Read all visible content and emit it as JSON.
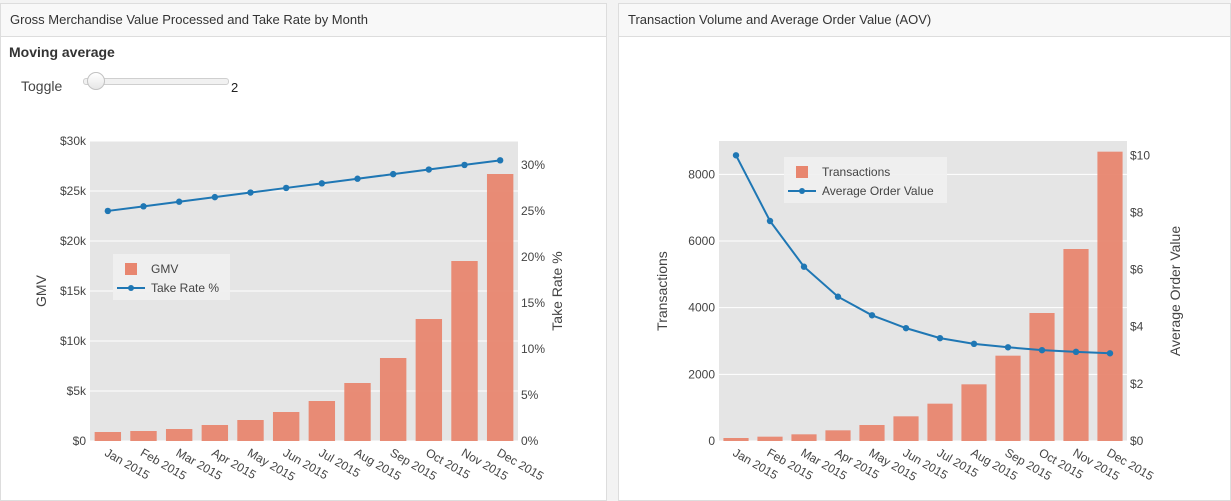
{
  "left_panel": {
    "title": "Gross Merchandise Value Processed and Take Rate by Month",
    "moving_average": {
      "heading": "Moving average",
      "toggle_label": "Toggle",
      "value": "2",
      "slider_fraction": 0.03
    }
  },
  "right_panel": {
    "title": "Transaction Volume and Average Order Value (AOV)"
  },
  "colors": {
    "bar": "#e8866f",
    "line": "#1f77b4",
    "plot_bg": "#e5e5e5",
    "grid": "#ffffff"
  },
  "chart_data": [
    {
      "type": "bar",
      "categories": [
        "Jan 2015",
        "Feb 2015",
        "Mar 2015",
        "Apr 2015",
        "May 2015",
        "Jun 2015",
        "Jul 2015",
        "Aug 2015",
        "Sep 2015",
        "Oct 2015",
        "Nov 2015",
        "Dec 2015"
      ],
      "series": [
        {
          "name": "GMV",
          "type": "bar",
          "axis": "left",
          "values": [
            900,
            1000,
            1200,
            1600,
            2100,
            2900,
            4000,
            5800,
            8300,
            12200,
            18000,
            26700
          ]
        },
        {
          "name": "Take Rate %",
          "type": "line",
          "axis": "right",
          "values": [
            25,
            25.5,
            26,
            26.5,
            27,
            27.5,
            28,
            28.5,
            29,
            29.5,
            30,
            30.5
          ]
        }
      ],
      "left_axis": {
        "title": "GMV",
        "range": [
          0,
          30000
        ],
        "ticks": [
          0,
          5000,
          10000,
          15000,
          20000,
          25000,
          30000
        ],
        "tick_labels": [
          "$0",
          "$5k",
          "$10k",
          "$15k",
          "$20k",
          "$25k",
          "$30k"
        ]
      },
      "right_axis": {
        "title": "Take Rate %",
        "range": [
          0,
          32.6
        ],
        "ticks": [
          0,
          5,
          10,
          15,
          20,
          25,
          30
        ],
        "tick_labels": [
          "0%",
          "5%",
          "10%",
          "15%",
          "20%",
          "25%",
          "30%"
        ]
      },
      "legend": {
        "position": "center-left",
        "entries": [
          "GMV",
          "Take Rate %"
        ]
      }
    },
    {
      "type": "bar",
      "categories": [
        "Jan 2015",
        "Feb 2015",
        "Mar 2015",
        "Apr 2015",
        "May 2015",
        "Jun 2015",
        "Jul 2015",
        "Aug 2015",
        "Sep 2015",
        "Oct 2015",
        "Nov 2015",
        "Dec 2015"
      ],
      "series": [
        {
          "name": "Transactions",
          "type": "bar",
          "axis": "left",
          "values": [
            90,
            130,
            200,
            320,
            480,
            740,
            1120,
            1700,
            2560,
            3840,
            5760,
            8680
          ]
        },
        {
          "name": "Average Order Value",
          "type": "line",
          "axis": "right",
          "values": [
            10,
            7.7,
            6.1,
            5.05,
            4.4,
            3.95,
            3.6,
            3.4,
            3.28,
            3.18,
            3.12,
            3.07
          ]
        }
      ],
      "left_axis": {
        "title": "Transactions",
        "range": [
          0,
          9000
        ],
        "ticks": [
          0,
          2000,
          4000,
          6000,
          8000
        ],
        "tick_labels": [
          "0",
          "2000",
          "4000",
          "6000",
          "8000"
        ]
      },
      "right_axis": {
        "title": "Average Order Value",
        "range": [
          0,
          10.5
        ],
        "ticks": [
          0,
          2,
          4,
          6,
          8,
          10
        ],
        "tick_labels": [
          "$0",
          "$2",
          "$4",
          "$6",
          "$8",
          "$10"
        ]
      },
      "legend": {
        "position": "top-left",
        "entries": [
          "Transactions",
          "Average Order Value"
        ]
      }
    }
  ]
}
